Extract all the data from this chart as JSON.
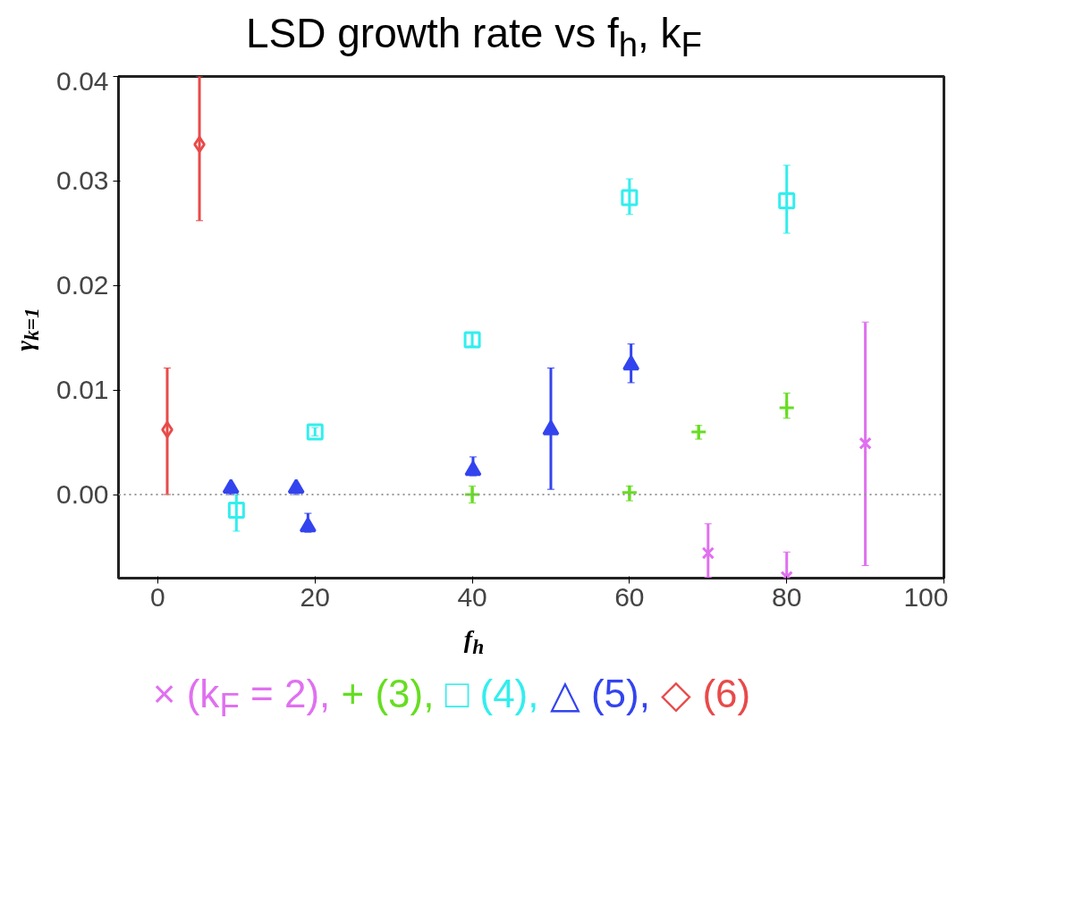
{
  "chart_data": {
    "type": "scatter",
    "title": "LSD growth rate vs f$_{h}$, k$_{F}$",
    "xlabel": "f$_{h}$",
    "ylabel": "γ$_{k=1}$",
    "xlim": [
      -5,
      100
    ],
    "ylim": [
      -0.008,
      0.04
    ],
    "xticks": [
      0,
      20,
      40,
      60,
      80,
      100
    ],
    "yticks": [
      {
        "value": 0,
        "label": "0.00"
      },
      {
        "value": 0.01,
        "label": "0.01"
      },
      {
        "value": 0.02,
        "label": "0.02"
      },
      {
        "value": 0.03,
        "label": "0.03"
      },
      {
        "value": 0.04,
        "label": "0.04"
      }
    ],
    "grid": false,
    "ref_lines": [
      {
        "axis": "y",
        "value": 0,
        "color": "#999999",
        "line_style": "dotted"
      }
    ],
    "series": [
      {
        "name": "× (k$_{F}$ = 2),",
        "color": "#e070f0",
        "marker": "x",
        "x": [
          70,
          80,
          90
        ],
        "values": [
          -0.0056,
          -0.0079,
          0.0049
        ],
        "errors": [
          [
            -0.0079,
            -0.0028
          ],
          [
            -0.0079,
            -0.0055
          ],
          [
            -0.0068,
            0.0165
          ]
        ]
      },
      {
        "name": "+ (3),",
        "color": "#66dd22",
        "marker": "cross",
        "x": [
          40,
          60,
          68.8,
          80
        ],
        "values": [
          0.0,
          0.0002,
          0.006,
          0.0083
        ],
        "errors": [
          [
            -0.0008,
            0.0008
          ],
          [
            -0.0006,
            0.0008
          ],
          [
            0.0053,
            0.0066
          ],
          [
            0.0073,
            0.0097
          ]
        ]
      },
      {
        "name": "□ (4),",
        "color": "#33eeee",
        "marker": "square",
        "x": [
          10,
          20,
          40,
          60,
          80
        ],
        "values": [
          -0.0015,
          0.006,
          0.0148,
          0.0284,
          0.0281
        ],
        "errors": [
          [
            -0.0035,
            0.0
          ],
          [
            0.0056,
            0.0064
          ],
          [
            0.0142,
            0.0155
          ],
          [
            0.0268,
            0.0302
          ],
          [
            0.025,
            0.0315
          ]
        ]
      },
      {
        "name": "△ (5),",
        "color": "#3344ee",
        "marker": "triangle",
        "x": [
          9.3,
          17.6,
          19.1,
          40.1,
          50,
          60.2
        ],
        "values": [
          0.0006,
          0.0006,
          -0.0031,
          0.0023,
          0.0062,
          0.0124
        ],
        "errors": [
          [
            0.0,
            0.001
          ],
          [
            0.0,
            0.001
          ],
          [
            -0.0036,
            -0.0018
          ],
          [
            0.0018,
            0.0036
          ],
          [
            0.0005,
            0.0121
          ],
          [
            0.0107,
            0.0144
          ]
        ]
      },
      {
        "name": "◇ (6)",
        "color": "#e84a4a",
        "marker": "diamond",
        "x": [
          1.2,
          5.3
        ],
        "values": [
          0.0062,
          0.0335
        ],
        "errors": [
          [
            0.0,
            0.0121
          ],
          [
            0.0262,
            0.04
          ]
        ]
      }
    ]
  }
}
